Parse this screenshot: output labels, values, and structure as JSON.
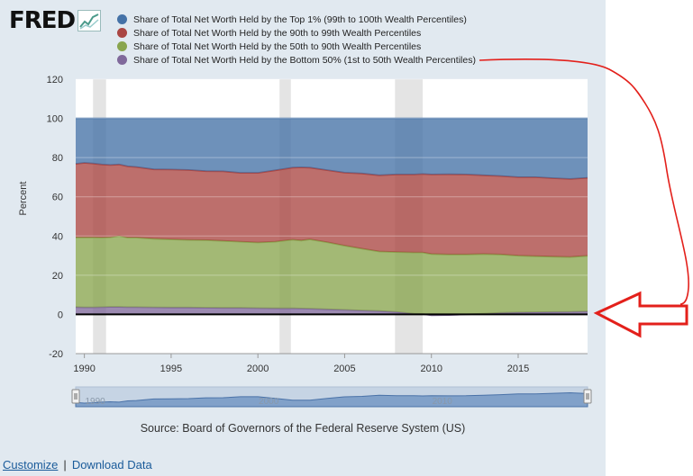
{
  "logo": {
    "text": "FRED",
    "graph_icon": "line-chart-icon"
  },
  "legend": [
    {
      "label": "Share of Total Net Worth Held by the Top 1% (99th to 100th Wealth Percentiles)",
      "color": "#4572a7"
    },
    {
      "label": "Share of Total Net Worth Held by the 90th to 99th Wealth Percentiles",
      "color": "#aa4643"
    },
    {
      "label": "Share of Total Net Worth Held by the 50th to 90th Wealth Percentiles",
      "color": "#89a54e"
    },
    {
      "label": "Share of Total Net Worth Held by the Bottom 50% (1st to 50th Wealth Percentiles)",
      "color": "#80699b"
    }
  ],
  "chart_data": {
    "type": "area",
    "stacked": true,
    "ylabel": "Percent",
    "ylim": [
      -20,
      120
    ],
    "yticks": [
      -20,
      0,
      20,
      40,
      60,
      80,
      100,
      120
    ],
    "xlim": [
      1989.5,
      2019
    ],
    "xticks": [
      1990,
      1995,
      2000,
      2005,
      2010,
      2015
    ],
    "recessions": [
      [
        1990.5,
        1991.25
      ],
      [
        2001.25,
        2001.9
      ],
      [
        2007.9,
        2009.5
      ]
    ],
    "x": [
      1989.5,
      1990,
      1990.5,
      1991,
      1991.5,
      1992,
      1992.5,
      1993,
      1994,
      1995,
      1996,
      1997,
      1998,
      1999,
      2000,
      2001,
      2002,
      2002.5,
      2003,
      2004,
      2005,
      2006,
      2007,
      2008,
      2009,
      2009.5,
      2010,
      2011,
      2012,
      2013,
      2014,
      2015,
      2016,
      2017,
      2018,
      2019
    ],
    "series": [
      {
        "name": "Share of Total Net Worth Held by the Bottom 50% (1st to 50th Wealth Percentiles)",
        "color": "#80699b",
        "values": [
          3.7,
          3.6,
          3.6,
          3.7,
          3.8,
          3.8,
          3.7,
          3.7,
          3.6,
          3.5,
          3.5,
          3.4,
          3.3,
          3.3,
          3.2,
          3.1,
          3.1,
          3.0,
          2.9,
          2.6,
          2.3,
          2.0,
          1.7,
          1.2,
          0.4,
          0.2,
          -0.4,
          -0.3,
          0.0,
          0.4,
          0.8,
          1.0,
          1.1,
          1.2,
          1.3,
          1.5
        ]
      },
      {
        "name": "Share of Total Net Worth Held by the 50th to 90th Wealth Percentiles",
        "color": "#89a54e",
        "values": [
          35.6,
          35.7,
          35.7,
          35.5,
          35.6,
          36.2,
          35.5,
          35.5,
          35.0,
          34.8,
          34.5,
          34.5,
          34.2,
          33.8,
          33.5,
          34.0,
          35.0,
          34.7,
          35.4,
          34.2,
          32.8,
          31.5,
          30.4,
          30.6,
          31.2,
          31.4,
          31.2,
          30.9,
          30.6,
          30.4,
          29.8,
          29.0,
          28.6,
          28.3,
          28.0,
          28.4
        ]
      },
      {
        "name": "Share of Total Net Worth Held by the 90th to 99th Wealth Percentiles",
        "color": "#aa4643",
        "values": [
          37.5,
          38.0,
          37.7,
          37.3,
          36.8,
          36.5,
          36.3,
          36.0,
          35.4,
          35.6,
          35.7,
          35.2,
          35.5,
          35.1,
          35.5,
          36.4,
          36.8,
          37.3,
          36.6,
          36.8,
          37.2,
          38.4,
          38.9,
          39.6,
          39.8,
          40.0,
          40.6,
          40.9,
          40.8,
          40.2,
          40.0,
          40.0,
          40.3,
          40.0,
          39.8,
          39.8
        ]
      },
      {
        "name": "Share of Total Net Worth Held by the Top 1% (99th to 100th Wealth Percentiles)",
        "color": "#4572a7",
        "values": [
          23.2,
          22.7,
          23.0,
          23.5,
          23.8,
          23.5,
          24.5,
          24.8,
          26.0,
          26.1,
          26.3,
          26.9,
          27.0,
          27.8,
          27.8,
          26.5,
          25.1,
          25.0,
          25.1,
          26.4,
          27.7,
          28.1,
          29.0,
          28.6,
          28.6,
          28.4,
          28.6,
          28.5,
          28.6,
          29.0,
          29.4,
          30.0,
          30.0,
          30.5,
          30.9,
          30.3
        ]
      }
    ],
    "navigator": {
      "ticks": [
        1990,
        2000,
        2010
      ]
    }
  },
  "source": "Source: Board of Governors of the Federal Reserve System (US)",
  "links": {
    "customize": "Customize",
    "separator": "|",
    "download": "Download Data"
  }
}
